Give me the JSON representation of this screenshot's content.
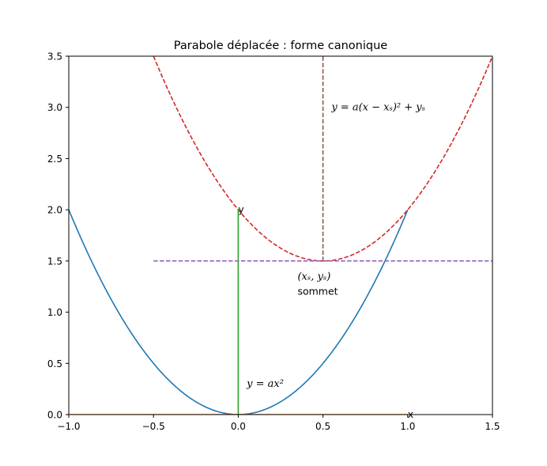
{
  "chart_data": {
    "type": "line",
    "title": "Parabole déplacée : forme canonique",
    "xlabel": "",
    "ylabel": "",
    "xlim": [
      -1.0,
      1.5
    ],
    "ylim": [
      0.0,
      3.5
    ],
    "x_ticks": [
      "−1.0",
      "−0.5",
      "0.0",
      "0.5",
      "1.0",
      "1.5"
    ],
    "x_tick_values": [
      -1.0,
      -0.5,
      0.0,
      0.5,
      1.0,
      1.5
    ],
    "y_ticks": [
      "0.0",
      "0.5",
      "1.0",
      "1.5",
      "2.0",
      "2.5",
      "3.0",
      "3.5"
    ],
    "y_tick_values": [
      0.0,
      0.5,
      1.0,
      1.5,
      2.0,
      2.5,
      3.0,
      3.5
    ],
    "grid": false,
    "legend": "none",
    "series": [
      {
        "kind": "function",
        "formula": "a*x^2",
        "a": 2,
        "x_range": [
          -1.0,
          1.0
        ],
        "color": "#1f77b4",
        "style": "solid"
      },
      {
        "kind": "function",
        "formula": "a*(x - xs)^2 + ys",
        "a": 2,
        "xs": 0.5,
        "ys": 1.5,
        "x_range": [
          -0.5,
          1.5
        ],
        "color": "#d62728",
        "style": "dashed"
      },
      {
        "kind": "segment",
        "points": [
          [
            -1.0,
            0.0
          ],
          [
            1.0,
            0.0
          ]
        ],
        "color": "#ff7f0e",
        "style": "solid"
      },
      {
        "kind": "segment",
        "points": [
          [
            0.0,
            0.0
          ],
          [
            0.0,
            2.0
          ]
        ],
        "color": "#2ca02c",
        "style": "solid"
      },
      {
        "kind": "segment",
        "points": [
          [
            0.5,
            1.5
          ],
          [
            0.5,
            3.5
          ]
        ],
        "color": "#8c564b",
        "style": "dashed"
      },
      {
        "kind": "segment",
        "points": [
          [
            -0.5,
            1.5
          ],
          [
            1.5,
            1.5
          ]
        ],
        "color": "#9467bd",
        "style": "dashed"
      }
    ],
    "annotations": [
      {
        "text": "x",
        "x": 1.0,
        "y": 0.0,
        "math": false
      },
      {
        "text": "y",
        "x": 0.0,
        "y": 2.0,
        "math": false
      },
      {
        "text": "y = ax²",
        "x": 0.05,
        "y": 0.3,
        "math": true
      },
      {
        "text": "y = a(x − xₛ)² + yₛ",
        "x": 0.55,
        "y": 3.0,
        "math": true
      },
      {
        "text": "(xₛ, yₛ)",
        "x": 0.35,
        "y": 1.35,
        "math": true
      },
      {
        "text": "sommet",
        "x": 0.35,
        "y": 1.2,
        "math": false
      }
    ]
  }
}
